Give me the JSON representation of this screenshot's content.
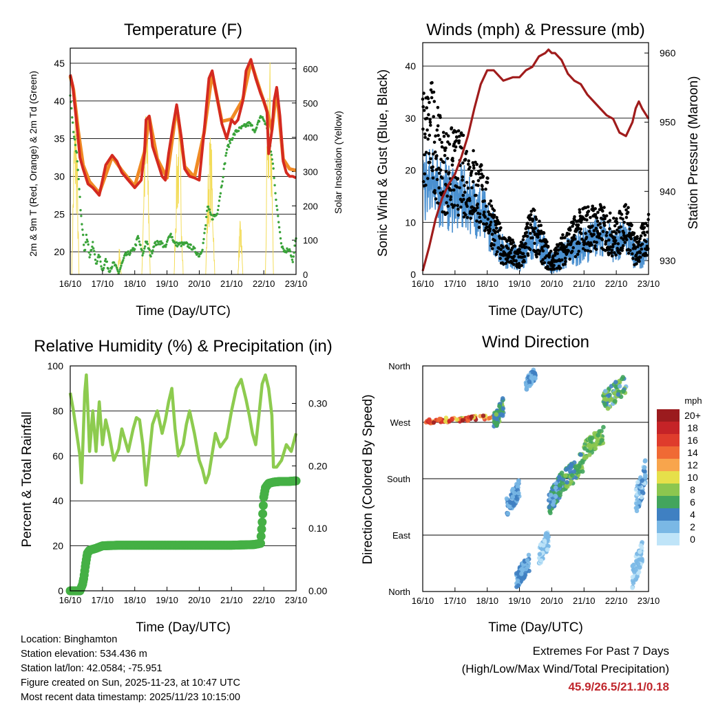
{
  "colors": {
    "temp2m": "#d42a20",
    "temp9m": "#f08a24",
    "dewpoint": "#3aa33a",
    "solar": "#f3dc5a",
    "wind": "#4a90d0",
    "gust": "#000000",
    "pressure": "#a01c1c",
    "rh": "#8dcb4f",
    "precip": "#45b045",
    "extremes": "#c0272d"
  },
  "info": {
    "location": "Location: Binghamton",
    "elevation": "Station elevation: 534.436 m",
    "latlon": "Station lat/lon: 42.0584; -75.951",
    "created": "Figure created on Sun, 2025-11-23, at 10:47 UTC",
    "recent": "Most recent data timestamp: 2025/11/23 10:15:00"
  },
  "extremes": {
    "title": "Extremes For Past 7 Days",
    "subtitle": "(High/Low/Max Wind/Total Precipitation)",
    "values": "45.9/26.5/21.1/0.18"
  },
  "chart_data": [
    {
      "id": "temperature",
      "type": "line",
      "title": "Temperature (F)",
      "xlabel": "Time (Day/UTC)",
      "ylabel": "2m & 9m T (Red, Orange) & 2m Td (Green)",
      "y2label": "Solar Insolation (Yellow)",
      "xlim": [
        0,
        7
      ],
      "xticks": [
        "16/10",
        "17/10",
        "18/10",
        "19/10",
        "20/10",
        "21/10",
        "22/10",
        "23/10"
      ],
      "ylim": [
        17,
        47
      ],
      "yticks": [
        20,
        25,
        30,
        35,
        40,
        45
      ],
      "y2lim": [
        0,
        660
      ],
      "y2ticks": [
        0,
        100,
        200,
        300,
        400,
        500,
        600
      ],
      "series": [
        {
          "name": "2m T",
          "color": "#d42a20",
          "x": [
            0,
            0.08,
            0.2,
            0.3,
            0.4,
            0.55,
            0.7,
            0.9,
            1.1,
            1.3,
            1.45,
            1.6,
            1.8,
            2.0,
            2.2,
            2.3,
            2.35,
            2.45,
            2.55,
            2.7,
            2.85,
            2.95,
            3.05,
            3.2,
            3.3,
            3.45,
            3.55,
            3.7,
            3.85,
            4.0,
            4.15,
            4.3,
            4.4,
            4.55,
            4.7,
            4.85,
            5.0,
            5.1,
            5.2,
            5.35,
            5.45,
            5.6,
            5.75,
            5.9,
            6.0,
            6.1,
            6.15,
            6.25,
            6.32,
            6.4,
            6.5,
            6.6,
            6.7,
            6.8,
            6.9,
            7.0
          ],
          "values": [
            43.5,
            42,
            37,
            32.5,
            31,
            29,
            28.5,
            27.5,
            31.5,
            32.8,
            32,
            30.5,
            29.5,
            28.5,
            29.5,
            33,
            37.5,
            38,
            34,
            32,
            30,
            29.5,
            33,
            37,
            39.5,
            35,
            31,
            30,
            29.8,
            29.5,
            36,
            43,
            44,
            40.5,
            37,
            35,
            37.5,
            37,
            37.5,
            40,
            44,
            45.5,
            43,
            41,
            40,
            38.5,
            33,
            36,
            40,
            41.8,
            38,
            32,
            30.5,
            30,
            30,
            29.8
          ]
        },
        {
          "name": "9m T",
          "color": "#f08a24",
          "x": [
            0,
            0.1,
            0.25,
            0.4,
            0.6,
            0.9,
            1.3,
            1.6,
            2.0,
            2.3,
            2.45,
            2.7,
            3.0,
            3.3,
            3.55,
            3.85,
            4.15,
            4.4,
            4.7,
            5.0,
            5.35,
            5.6,
            5.9,
            6.1,
            6.25,
            6.4,
            6.6,
            6.8,
            7.0
          ],
          "values": [
            43.3,
            41.5,
            36,
            31.5,
            29.3,
            27.8,
            32.6,
            30.8,
            28.7,
            33.2,
            37.8,
            32.3,
            29.8,
            39.2,
            31.3,
            29.9,
            35.8,
            43.7,
            37.3,
            37.6,
            40.2,
            45.2,
            41.2,
            38.7,
            36.2,
            41.5,
            32.3,
            31,
            30.8
          ]
        },
        {
          "name": "2m Td",
          "color": "#3aa33a",
          "x": [
            0,
            0.1,
            0.2,
            0.3,
            0.35,
            0.45,
            0.5,
            0.6,
            0.7,
            0.8,
            0.9,
            1.0,
            1.1,
            1.2,
            1.35,
            1.5,
            1.7,
            1.9,
            2.0,
            2.1,
            2.25,
            2.35,
            2.5,
            2.6,
            2.8,
            2.95,
            3.1,
            3.25,
            3.4,
            3.6,
            3.8,
            4.0,
            4.1,
            4.2,
            4.25,
            4.4,
            4.55,
            4.7,
            4.85,
            5.0,
            5.15,
            5.35,
            5.55,
            5.75,
            5.9,
            6.0,
            6.1,
            6.2,
            6.3,
            6.4,
            6.55,
            6.65,
            6.8,
            6.9,
            7.0
          ],
          "values": [
            41,
            36,
            33,
            27,
            24,
            20,
            22.5,
            19.5,
            21,
            18.5,
            19.5,
            17.5,
            19,
            17.5,
            18.5,
            17.2,
            19.5,
            20,
            20.5,
            22,
            19.5,
            21.5,
            19.5,
            21,
            21.3,
            20.5,
            22.5,
            21,
            21,
            21,
            20.5,
            19.5,
            20.5,
            23.5,
            26,
            24.5,
            25,
            29,
            33.5,
            35,
            36,
            36.5,
            37,
            36,
            38,
            37.5,
            36.5,
            34,
            31,
            26,
            21,
            20,
            20.5,
            18.5,
            22
          ]
        },
        {
          "name": "Solar",
          "color": "#f3dc5a",
          "days": [
            {
              "start": 0.05,
              "end": 0.27,
              "peak": 520
            },
            {
              "start": 1.47,
              "end": 1.58,
              "peak": 80
            },
            {
              "start": 2.22,
              "end": 2.48,
              "peak": 510
            },
            {
              "start": 3.22,
              "end": 3.5,
              "peak": 470
            },
            {
              "start": 4.2,
              "end": 4.48,
              "peak": 420
            },
            {
              "start": 5.2,
              "end": 5.35,
              "peak": 160
            },
            {
              "start": 6.05,
              "end": 6.3,
              "peak": 660
            }
          ]
        }
      ]
    },
    {
      "id": "winds",
      "type": "scatter",
      "title": "Winds (mph) & Pressure (mb)",
      "xlabel": "Time (Day/UTC)",
      "ylabel": "Sonic Wind & Gust (Blue, Black)",
      "y2label": "Station Pressure (Maroon)",
      "xlim": [
        0,
        7
      ],
      "xticks": [
        "16/10",
        "17/10",
        "18/10",
        "19/10",
        "20/10",
        "21/10",
        "22/10",
        "23/10"
      ],
      "ylim": [
        0,
        44.5
      ],
      "yticks": [
        0,
        10,
        20,
        30,
        40
      ],
      "y2lim": [
        928,
        961.5
      ],
      "y2ticks": [
        930,
        940,
        950,
        960
      ],
      "wind_mean_mph": {
        "x": [
          0,
          0.5,
          1.0,
          1.5,
          2.0,
          2.5,
          3.0,
          3.5,
          4.0,
          4.5,
          5.0,
          5.5,
          6.0,
          6.3,
          6.6,
          7.0
        ],
        "values": [
          14,
          13,
          12,
          11,
          8,
          3,
          2,
          6,
          1,
          3,
          4,
          6,
          4,
          6,
          2,
          4
        ]
      },
      "gust_mean_mph": {
        "x": [
          0,
          0.3,
          0.6,
          1.0,
          1.5,
          2.0,
          2.3,
          2.5,
          3.0,
          3.4,
          4.0,
          4.5,
          5.0,
          5.5,
          6.0,
          6.3,
          6.6,
          7.0
        ],
        "values": [
          25,
          27,
          20,
          20,
          18,
          13,
          7,
          5,
          3,
          9,
          2,
          6,
          9,
          9,
          7,
          10,
          4,
          8
        ]
      },
      "series": [
        {
          "name": "Station Pressure",
          "color": "#a01c1c",
          "x": [
            0,
            0.2,
            0.4,
            0.6,
            0.8,
            1.0,
            1.2,
            1.4,
            1.6,
            1.8,
            2.0,
            2.2,
            2.5,
            2.8,
            3.0,
            3.2,
            3.4,
            3.6,
            3.8,
            3.9,
            4.0,
            4.1,
            4.3,
            4.5,
            4.7,
            4.9,
            5.1,
            5.3,
            5.5,
            5.7,
            5.9,
            6.1,
            6.3,
            6.5,
            6.6,
            6.7,
            6.8,
            7.0
          ],
          "values": [
            928.5,
            932,
            936,
            939,
            941,
            942.5,
            945,
            948,
            952,
            955.5,
            957.5,
            957.5,
            956,
            956.5,
            956.5,
            957.5,
            958,
            959.5,
            960,
            960.5,
            960,
            960,
            959,
            957,
            956,
            955.5,
            954,
            953,
            952,
            951,
            950.5,
            948.5,
            948,
            950,
            952,
            953,
            952,
            950.5
          ]
        }
      ]
    },
    {
      "id": "humidity",
      "type": "line",
      "title": "Relative Humidity (%) & Precipitation (in)",
      "xlabel": "Time (Day/UTC)",
      "ylabel": "Percent & Total Rainfall",
      "xlim": [
        0,
        7
      ],
      "xticks": [
        "16/10",
        "17/10",
        "18/10",
        "19/10",
        "20/10",
        "21/10",
        "22/10",
        "23/10"
      ],
      "ylim": [
        0,
        100
      ],
      "yticks": [
        0,
        20,
        40,
        60,
        80,
        100
      ],
      "y2lim": [
        0,
        0.36
      ],
      "y2ticks": [
        "0.00",
        "0.10",
        "0.20",
        "0.30"
      ],
      "series": [
        {
          "name": "RH",
          "color": "#8dcb4f",
          "x": [
            0,
            0.1,
            0.2,
            0.3,
            0.35,
            0.45,
            0.5,
            0.55,
            0.6,
            0.7,
            0.8,
            0.9,
            1.0,
            1.1,
            1.2,
            1.35,
            1.5,
            1.6,
            1.8,
            1.95,
            2.05,
            2.15,
            2.25,
            2.35,
            2.45,
            2.55,
            2.7,
            2.85,
            2.95,
            3.05,
            3.15,
            3.25,
            3.35,
            3.5,
            3.6,
            3.7,
            3.85,
            4.0,
            4.1,
            4.2,
            4.3,
            4.5,
            4.65,
            4.85,
            5.0,
            5.15,
            5.3,
            5.45,
            5.55,
            5.65,
            5.75,
            5.85,
            5.95,
            6.05,
            6.15,
            6.25,
            6.3,
            6.4,
            6.55,
            6.7,
            6.85,
            7.0
          ],
          "values": [
            88,
            80,
            70,
            60,
            48,
            88,
            96,
            80,
            62,
            80,
            62,
            84,
            65,
            76,
            70,
            58,
            63,
            72,
            62,
            72,
            77,
            76,
            65,
            47,
            60,
            74,
            80,
            70,
            76,
            84,
            90,
            72,
            60,
            65,
            74,
            80,
            70,
            58,
            54,
            48,
            52,
            70,
            64,
            68,
            80,
            90,
            94,
            85,
            78,
            70,
            65,
            78,
            92,
            96,
            90,
            78,
            55,
            55,
            58,
            65,
            62,
            70
          ]
        },
        {
          "name": "Total Rainfall",
          "color": "#45b045",
          "x": [
            0,
            0.3,
            0.38,
            0.42,
            0.47,
            0.53,
            0.6,
            0.8,
            1.0,
            1.5,
            2.0,
            3.0,
            4.0,
            5.0,
            5.7,
            5.9,
            5.95,
            6.0,
            6.05,
            6.15,
            6.3,
            6.5,
            6.75,
            7.0
          ],
          "values": [
            0,
            0,
            0.01,
            0.02,
            0.04,
            0.06,
            0.065,
            0.068,
            0.072,
            0.073,
            0.073,
            0.073,
            0.073,
            0.073,
            0.074,
            0.076,
            0.11,
            0.15,
            0.165,
            0.172,
            0.174,
            0.175,
            0.175,
            0.176
          ]
        }
      ]
    },
    {
      "id": "wind_direction",
      "type": "scatter",
      "title": "Wind Direction",
      "xlabel": "Time (Day/UTC)",
      "ylabel": "Direction (Colored By Speed)",
      "xlim": [
        0,
        7
      ],
      "xticks": [
        "16/10",
        "17/10",
        "18/10",
        "19/10",
        "20/10",
        "21/10",
        "22/10",
        "23/10"
      ],
      "ylim": [
        0,
        360
      ],
      "yticks": [
        "North",
        "East",
        "South",
        "West",
        "North"
      ],
      "colorbar": {
        "title": "mph",
        "labels": [
          "20+",
          "18",
          "16",
          "14",
          "12",
          "10",
          "8",
          "6",
          "4",
          "2",
          "0"
        ],
        "colors": [
          "#9b1b1e",
          "#c52327",
          "#df3c2c",
          "#f06a34",
          "#f8a54c",
          "#e6e04a",
          "#8cc64f",
          "#43a55d",
          "#3f80c2",
          "#7ab8e5",
          "#bfe4f8"
        ]
      },
      "clusters": [
        {
          "x": [
            0.1,
            2.2
          ],
          "dir": [
            268,
            282
          ],
          "speed": [
            8,
            20
          ]
        },
        {
          "x": [
            2.2,
            2.5
          ],
          "dir": [
            255,
            310
          ],
          "speed": [
            3,
            8
          ]
        },
        {
          "x": [
            2.6,
            3.0
          ],
          "dir": [
            120,
            180
          ],
          "speed": [
            1,
            5
          ]
        },
        {
          "x": [
            2.9,
            3.3
          ],
          "dir": [
            5,
            60
          ],
          "speed": [
            1,
            5
          ]
        },
        {
          "x": [
            3.2,
            3.5
          ],
          "dir": [
            320,
            360
          ],
          "speed": [
            1,
            4
          ]
        },
        {
          "x": [
            3.6,
            3.9
          ],
          "dir": [
            40,
            100
          ],
          "speed": [
            0,
            3
          ]
        },
        {
          "x": [
            3.9,
            4.3
          ],
          "dir": [
            120,
            190
          ],
          "speed": [
            2,
            6
          ]
        },
        {
          "x": [
            4.3,
            5.0
          ],
          "dir": [
            155,
            225
          ],
          "speed": [
            4,
            8
          ]
        },
        {
          "x": [
            5.0,
            5.6
          ],
          "dir": [
            210,
            265
          ],
          "speed": [
            5,
            9
          ]
        },
        {
          "x": [
            5.6,
            6.3
          ],
          "dir": [
            285,
            350
          ],
          "speed": [
            2,
            9
          ]
        },
        {
          "x": [
            6.6,
            6.9
          ],
          "dir": [
            120,
            210
          ],
          "speed": [
            0,
            4
          ]
        },
        {
          "x": [
            6.5,
            6.8
          ],
          "dir": [
            5,
            80
          ],
          "speed": [
            0,
            2
          ]
        }
      ]
    }
  ]
}
